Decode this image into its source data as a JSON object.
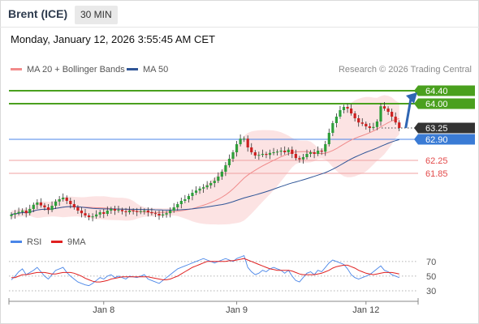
{
  "header": {
    "title": "Brent (ICE)",
    "timeframe": "30 MIN",
    "timestamp": "Monday, January 12, 2026 3:55:45 AM CET"
  },
  "legend": {
    "items": [
      {
        "label": "MA 20 + Bollinger Bands",
        "color": "#f28b8b"
      },
      {
        "label": "MA 50",
        "color": "#2f5597"
      }
    ],
    "credit": "Research © 2026 Trading Central"
  },
  "chart_data": [
    {
      "type": "candlestick",
      "title": "",
      "ylim": [
        60.4,
        64.75
      ],
      "x_ticks": [
        "Jan 8",
        "Jan 9",
        "Jan 12"
      ],
      "levels": [
        {
          "value": 64.4,
          "label": "64.40",
          "kind": "resistance",
          "color": "#4aa01e"
        },
        {
          "value": 64.0,
          "label": "64.00",
          "kind": "resistance",
          "color": "#4aa01e"
        },
        {
          "value": 63.25,
          "label": "63.25",
          "kind": "last",
          "color": "#333333"
        },
        {
          "value": 62.9,
          "label": "62.90",
          "kind": "pivot",
          "color": "#4a86e8"
        },
        {
          "value": 62.25,
          "label": "62.25",
          "kind": "support",
          "color": "#e34a4a"
        },
        {
          "value": 61.85,
          "label": "61.85",
          "kind": "support",
          "color": "#e34a4a"
        }
      ],
      "closes": [
        60.58,
        60.62,
        60.66,
        60.7,
        60.62,
        60.75,
        60.88,
        60.95,
        60.86,
        60.8,
        60.72,
        60.85,
        60.98,
        61.05,
        61.1,
        61.0,
        60.9,
        60.8,
        60.7,
        60.62,
        60.55,
        60.5,
        60.52,
        60.58,
        60.65,
        60.6,
        60.7,
        60.75,
        60.7,
        60.72,
        60.68,
        60.65,
        60.7,
        60.68,
        60.66,
        60.68,
        60.7,
        60.65,
        60.62,
        60.6,
        60.55,
        60.58,
        60.62,
        60.7,
        60.8,
        60.9,
        61.0,
        61.05,
        61.15,
        61.25,
        61.32,
        61.38,
        61.42,
        61.48,
        61.55,
        61.62,
        61.75,
        61.9,
        62.1,
        62.3,
        62.5,
        62.75,
        62.92,
        62.92,
        62.65,
        62.5,
        62.4,
        62.42,
        62.45,
        62.42,
        62.48,
        62.5,
        62.52,
        62.55,
        62.5,
        62.58,
        62.45,
        62.32,
        62.28,
        62.35,
        62.45,
        62.5,
        62.45,
        62.55,
        62.52,
        62.75,
        63.1,
        63.4,
        63.6,
        63.8,
        63.9,
        63.85,
        63.7,
        63.55,
        63.42,
        63.38,
        63.3,
        63.25,
        63.28,
        63.45,
        63.92,
        63.85,
        63.75,
        63.6,
        63.42,
        63.25
      ],
      "rsi": {
        "label": "RSI",
        "color": "#4a86e8",
        "ylim": [
          20,
          82
        ],
        "levels": [
          70,
          50,
          30
        ],
        "values": [
          45,
          50,
          56,
          60,
          52,
          55,
          58,
          62,
          56,
          50,
          46,
          52,
          58,
          60,
          62,
          55,
          50,
          46,
          42,
          40,
          38,
          37,
          40,
          44,
          48,
          46,
          50,
          52,
          48,
          50,
          48,
          46,
          50,
          49,
          48,
          50,
          52,
          46,
          44,
          42,
          40,
          44,
          48,
          52,
          56,
          60,
          62,
          64,
          66,
          68,
          70,
          72,
          74,
          72,
          70,
          68,
          70,
          72,
          74,
          72,
          70,
          74,
          76,
          78,
          62,
          56,
          52,
          54,
          58,
          56,
          60,
          62,
          60,
          58,
          54,
          58,
          50,
          44,
          42,
          48,
          54,
          56,
          52,
          58,
          56,
          62,
          68,
          72,
          70,
          68,
          66,
          60,
          52,
          48,
          46,
          48,
          50,
          52,
          56,
          60,
          64,
          58,
          56,
          52,
          50,
          48
        ]
      },
      "rsi_ma": {
        "label": "9MA",
        "color": "#e02020",
        "values": [
          48,
          48,
          50,
          52,
          52,
          53,
          54,
          55,
          55,
          55,
          54,
          53,
          53,
          54,
          55,
          55,
          55,
          54,
          52,
          50,
          47,
          45,
          43,
          42,
          42,
          43,
          44,
          46,
          47,
          48,
          49,
          49,
          49,
          49,
          49,
          49,
          49,
          49,
          48,
          47,
          46,
          45,
          45,
          46,
          48,
          50,
          53,
          56,
          59,
          62,
          64,
          66,
          68,
          70,
          70,
          70,
          70,
          70,
          70,
          71,
          71,
          72,
          73,
          74,
          72,
          70,
          68,
          66,
          64,
          62,
          60,
          59,
          58,
          58,
          58,
          58,
          57,
          55,
          53,
          52,
          52,
          52,
          52,
          53,
          54,
          56,
          58,
          61,
          63,
          64,
          65,
          65,
          63,
          61,
          58,
          56,
          54,
          53,
          52,
          53,
          54,
          55,
          55,
          55,
          54,
          53
        ]
      }
    }
  ]
}
